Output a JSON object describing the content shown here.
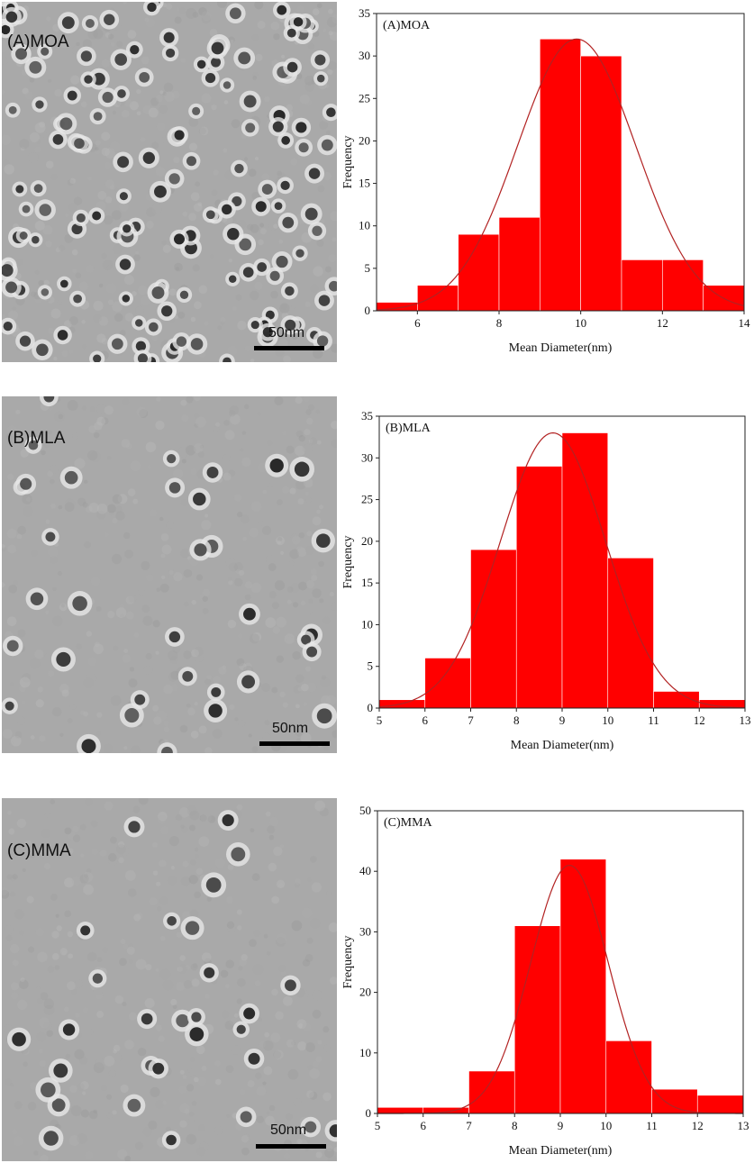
{
  "images": [
    {
      "label": "(A)MOA",
      "scale": "50nm"
    },
    {
      "label": "(B)MLA",
      "scale": "50nm"
    },
    {
      "label": "(C)MMA",
      "scale": "50nm"
    }
  ],
  "colors": {
    "bar": "#ff0000",
    "curve": "#b22222",
    "tem_background": "#a9a9a9"
  },
  "chart_data": [
    {
      "type": "bar",
      "title": "(A)MOA",
      "xlabel": "Mean Diameter(nm)",
      "ylabel": "Frequency",
      "xlim": [
        5,
        14
      ],
      "ylim": [
        0,
        35
      ],
      "xticks": [
        6,
        8,
        10,
        12,
        14
      ],
      "yticks": [
        0,
        5,
        10,
        15,
        20,
        25,
        30,
        35
      ],
      "bins": [
        [
          5,
          6
        ],
        [
          6,
          7
        ],
        [
          7,
          8
        ],
        [
          8,
          9
        ],
        [
          9,
          10
        ],
        [
          10,
          11
        ],
        [
          11,
          12
        ],
        [
          12,
          13
        ],
        [
          13,
          14
        ]
      ],
      "values": [
        1,
        3,
        9,
        11,
        32,
        30,
        6,
        6,
        3
      ],
      "fit": {
        "type": "gaussian",
        "mean": 9.9,
        "sd": 1.45,
        "peak": 32
      }
    },
    {
      "type": "bar",
      "title": "(B)MLA",
      "xlabel": "Mean Diameter(nm)",
      "ylabel": "Frequency",
      "xlim": [
        5,
        13
      ],
      "ylim": [
        0,
        35
      ],
      "xticks": [
        5,
        6,
        7,
        8,
        9,
        10,
        11,
        12,
        13
      ],
      "yticks": [
        0,
        5,
        10,
        15,
        20,
        25,
        30,
        35
      ],
      "bins": [
        [
          5,
          6
        ],
        [
          6,
          7
        ],
        [
          7,
          8
        ],
        [
          8,
          9
        ],
        [
          9,
          10
        ],
        [
          10,
          11
        ],
        [
          11,
          12
        ],
        [
          12,
          13
        ]
      ],
      "values": [
        1,
        6,
        19,
        29,
        33,
        18,
        2,
        1
      ],
      "fit": {
        "type": "gaussian",
        "mean": 8.8,
        "sd": 1.15,
        "peak": 33
      }
    },
    {
      "type": "bar",
      "title": "(C)MMA",
      "xlabel": "Mean Diameter(nm)",
      "ylabel": "Frequency",
      "xlim": [
        5,
        13
      ],
      "ylim": [
        0,
        50
      ],
      "xticks": [
        5,
        6,
        7,
        8,
        9,
        10,
        11,
        12,
        13
      ],
      "yticks": [
        0,
        10,
        20,
        30,
        40,
        50
      ],
      "bins": [
        [
          5,
          6
        ],
        [
          6,
          7
        ],
        [
          7,
          8
        ],
        [
          8,
          9
        ],
        [
          9,
          10
        ],
        [
          10,
          11
        ],
        [
          11,
          12
        ],
        [
          12,
          13
        ]
      ],
      "values": [
        1,
        1,
        7,
        31,
        42,
        12,
        4,
        3
      ],
      "fit": {
        "type": "gaussian",
        "mean": 9.2,
        "sd": 0.85,
        "peak": 41
      }
    }
  ]
}
